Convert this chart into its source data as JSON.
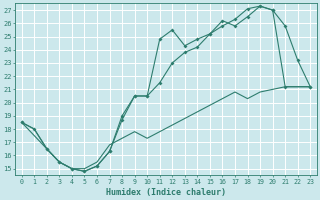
{
  "xlabel": "Humidex (Indice chaleur)",
  "bg_color": "#cce8ec",
  "grid_color": "#ffffff",
  "line_color": "#2e7d6e",
  "xlim": [
    -0.5,
    23.5
  ],
  "ylim": [
    14.5,
    27.5
  ],
  "xticks": [
    0,
    1,
    2,
    3,
    4,
    5,
    6,
    7,
    8,
    9,
    10,
    11,
    12,
    13,
    14,
    15,
    16,
    17,
    18,
    19,
    20,
    21,
    22,
    23
  ],
  "yticks": [
    15,
    16,
    17,
    18,
    19,
    20,
    21,
    22,
    23,
    24,
    25,
    26,
    27
  ],
  "line1_x": [
    0,
    1,
    2,
    3,
    4,
    5,
    6,
    7,
    8,
    9,
    10,
    11,
    12,
    13,
    14,
    15,
    16,
    17,
    18,
    19,
    20,
    21,
    22,
    23
  ],
  "line1_y": [
    18.5,
    18.0,
    16.5,
    15.5,
    15.0,
    14.8,
    15.2,
    16.3,
    18.7,
    20.5,
    20.5,
    24.8,
    25.5,
    24.3,
    24.8,
    25.2,
    26.2,
    25.8,
    26.5,
    27.3,
    27.0,
    25.8,
    23.2,
    21.2
  ],
  "line2_x": [
    0,
    2,
    3,
    4,
    5,
    6,
    7,
    8,
    9,
    10,
    11,
    12,
    13,
    14,
    15,
    16,
    17,
    18,
    19,
    20,
    21,
    23
  ],
  "line2_y": [
    18.5,
    16.5,
    15.5,
    15.0,
    14.8,
    15.2,
    16.3,
    19.0,
    20.5,
    20.5,
    21.5,
    23.0,
    23.8,
    24.2,
    25.2,
    25.8,
    26.3,
    27.1,
    27.3,
    27.0,
    21.2,
    21.2
  ],
  "line3_x": [
    0,
    1,
    2,
    3,
    4,
    5,
    6,
    7,
    8,
    9,
    10,
    11,
    12,
    13,
    14,
    15,
    16,
    17,
    18,
    19,
    20,
    21,
    22,
    23
  ],
  "line3_y": [
    18.5,
    18.0,
    16.5,
    15.5,
    15.0,
    15.0,
    15.5,
    16.8,
    17.3,
    17.8,
    17.3,
    17.8,
    18.3,
    18.8,
    19.3,
    19.8,
    20.3,
    20.8,
    20.3,
    20.8,
    21.0,
    21.2,
    21.2,
    21.2
  ]
}
